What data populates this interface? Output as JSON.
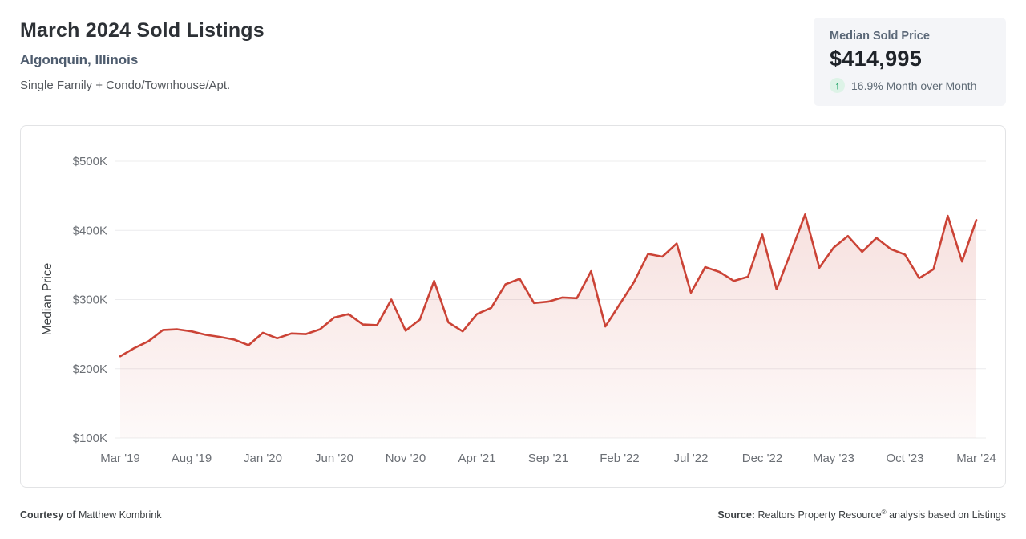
{
  "header": {
    "title": "March 2024 Sold Listings",
    "location": "Algonquin, Illinois",
    "subtitle": "Single Family + Condo/Townhouse/Apt."
  },
  "stat_card": {
    "label": "Median Sold Price",
    "value": "$414,995",
    "change_text": "16.9% Month over Month",
    "trend": "up",
    "trend_arrow": "↑",
    "trend_color": "#28a56c",
    "trend_badge_bg": "#ddf3e7"
  },
  "footer": {
    "courtesy_label": "Courtesy of",
    "courtesy_name": "Matthew Kombrink",
    "source_label": "Source:",
    "source_before_reg": "Realtors Property Resource",
    "reg_mark": "®",
    "source_after_reg": "analysis based on Listings"
  },
  "chart_data": {
    "type": "area",
    "title": "",
    "xlabel": "",
    "ylabel": "Median Price",
    "grid": true,
    "legend": false,
    "line_color": "#cb4336",
    "fill_top": "rgba(203,67,54,0.16)",
    "fill_bottom": "rgba(203,67,54,0.03)",
    "grid_color": "#ececee",
    "tick_color": "#6b6f75",
    "ylim": [
      100000,
      500000
    ],
    "y_ticks": [
      100000,
      200000,
      300000,
      400000,
      500000
    ],
    "y_tick_labels": [
      "$100K",
      "$200K",
      "$300K",
      "$400K",
      "$500K"
    ],
    "x_tick_every": 5,
    "x_tick_labels": [
      "Mar '19",
      "Aug '19",
      "Jan '20",
      "Jun '20",
      "Nov '20",
      "Apr '21",
      "Sep '21",
      "Feb '22",
      "Jul '22",
      "Dec '22",
      "May '23",
      "Oct '23",
      "Mar '24"
    ],
    "x": [
      "Mar '19",
      "Apr '19",
      "May '19",
      "Jun '19",
      "Jul '19",
      "Aug '19",
      "Sep '19",
      "Oct '19",
      "Nov '19",
      "Dec '19",
      "Jan '20",
      "Feb '20",
      "Mar '20",
      "Apr '20",
      "May '20",
      "Jun '20",
      "Jul '20",
      "Aug '20",
      "Sep '20",
      "Oct '20",
      "Nov '20",
      "Dec '20",
      "Jan '21",
      "Feb '21",
      "Mar '21",
      "Apr '21",
      "May '21",
      "Jun '21",
      "Jul '21",
      "Aug '21",
      "Sep '21",
      "Oct '21",
      "Nov '21",
      "Dec '21",
      "Jan '22",
      "Feb '22",
      "Mar '22",
      "Apr '22",
      "May '22",
      "Jun '22",
      "Jul '22",
      "Aug '22",
      "Sep '22",
      "Oct '22",
      "Nov '22",
      "Dec '22",
      "Jan '23",
      "Feb '23",
      "Mar '23",
      "Apr '23",
      "May '23",
      "Jun '23",
      "Jul '23",
      "Aug '23",
      "Sep '23",
      "Oct '23",
      "Nov '23",
      "Dec '23",
      "Jan '24",
      "Feb '24",
      "Mar '24"
    ],
    "values": [
      218000,
      230000,
      240000,
      256000,
      257000,
      254000,
      249000,
      246000,
      242000,
      234000,
      252000,
      244000,
      251000,
      250000,
      257000,
      274000,
      279000,
      264000,
      263000,
      300000,
      255000,
      271000,
      327000,
      267000,
      254000,
      279000,
      288000,
      322000,
      330000,
      295000,
      297000,
      303000,
      302000,
      341000,
      261000,
      293000,
      325000,
      366000,
      362000,
      381000,
      310000,
      347000,
      340000,
      327000,
      333000,
      394000,
      315000,
      368000,
      423000,
      346000,
      375000,
      392000,
      369000,
      389000,
      373000,
      365000,
      331000,
      344000,
      421000,
      355000,
      414995
    ]
  }
}
